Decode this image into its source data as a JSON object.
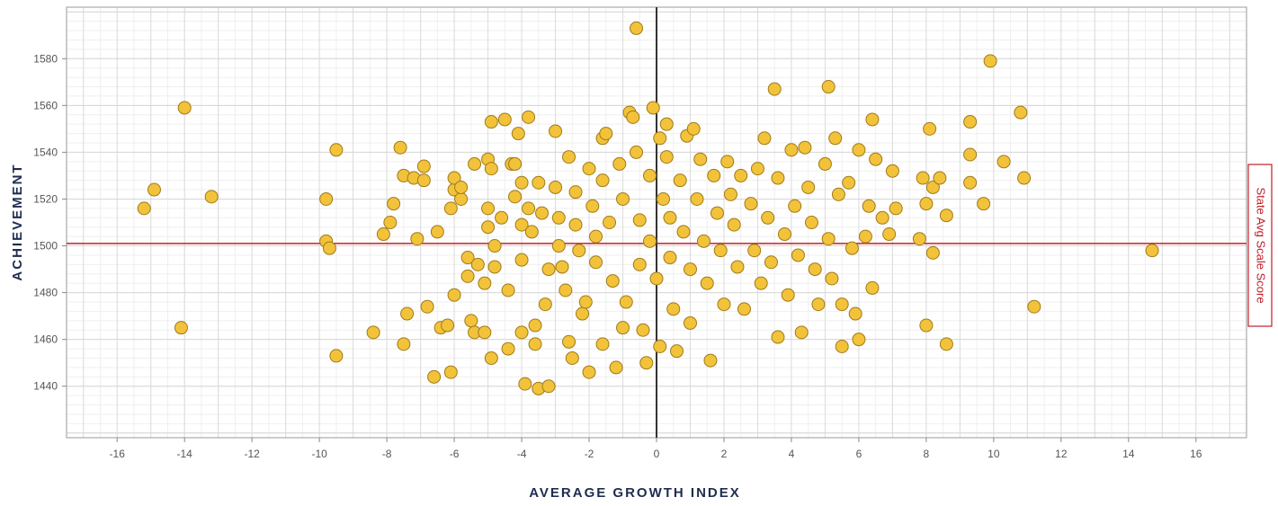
{
  "colors": {
    "point_fill": "#f2c33a",
    "point_stroke": "#a07a18",
    "reference_line": "#c0202a",
    "zero_line": "#333333",
    "axis_title": "#1f2d4f"
  },
  "chart_data": {
    "type": "scatter",
    "title": "",
    "xlabel": "AVERAGE GROWTH INDEX",
    "ylabel": "ACHIEVEMENT",
    "xlim": [
      -17.5,
      17.5
    ],
    "ylim": [
      1418,
      1602
    ],
    "xticks": [
      -16,
      -14,
      -12,
      -10,
      -8,
      -6,
      -4,
      -2,
      0,
      2,
      4,
      6,
      8,
      10,
      12,
      14,
      16
    ],
    "yticks": [
      1440,
      1460,
      1480,
      1500,
      1520,
      1540,
      1560,
      1580
    ],
    "grid": true,
    "reference_line": {
      "y": 1501,
      "label": "State Avg Scale Score"
    },
    "zero_line_x": 0,
    "points": [
      [
        -15.2,
        1516
      ],
      [
        -14.9,
        1524
      ],
      [
        -14.0,
        1559
      ],
      [
        -14.1,
        1465
      ],
      [
        -13.2,
        1521
      ],
      [
        -9.8,
        1520
      ],
      [
        -9.8,
        1502
      ],
      [
        -9.7,
        1499
      ],
      [
        -9.5,
        1541
      ],
      [
        -9.5,
        1453
      ],
      [
        -8.4,
        1463
      ],
      [
        -8.1,
        1505
      ],
      [
        -7.9,
        1510
      ],
      [
        -7.8,
        1518
      ],
      [
        -7.6,
        1542
      ],
      [
        -7.5,
        1530
      ],
      [
        -7.4,
        1471
      ],
      [
        -7.5,
        1458
      ],
      [
        -7.2,
        1529
      ],
      [
        -7.1,
        1503
      ],
      [
        -6.9,
        1534
      ],
      [
        -6.9,
        1528
      ],
      [
        -6.8,
        1474
      ],
      [
        -6.6,
        1444
      ],
      [
        -6.5,
        1506
      ],
      [
        -6.4,
        1465
      ],
      [
        -6.2,
        1466
      ],
      [
        -6.1,
        1516
      ],
      [
        -6.0,
        1524
      ],
      [
        -6.0,
        1529
      ],
      [
        -6.0,
        1479
      ],
      [
        -6.1,
        1446
      ],
      [
        -5.8,
        1520
      ],
      [
        -5.8,
        1525
      ],
      [
        -5.6,
        1495
      ],
      [
        -5.6,
        1487
      ],
      [
        -5.5,
        1468
      ],
      [
        -5.4,
        1535
      ],
      [
        -5.4,
        1463
      ],
      [
        -5.3,
        1492
      ],
      [
        -5.1,
        1484
      ],
      [
        -5.1,
        1463
      ],
      [
        -5.0,
        1537
      ],
      [
        -5.0,
        1516
      ],
      [
        -5.0,
        1508
      ],
      [
        -4.9,
        1553
      ],
      [
        -4.9,
        1533
      ],
      [
        -4.9,
        1452
      ],
      [
        -4.8,
        1500
      ],
      [
        -4.8,
        1491
      ],
      [
        -4.6,
        1512
      ],
      [
        -4.5,
        1554
      ],
      [
        -4.4,
        1481
      ],
      [
        -4.4,
        1456
      ],
      [
        -4.3,
        1535
      ],
      [
        -4.2,
        1535
      ],
      [
        -4.2,
        1521
      ],
      [
        -4.1,
        1548
      ],
      [
        -4.0,
        1527
      ],
      [
        -4.0,
        1509
      ],
      [
        -4.0,
        1494
      ],
      [
        -4.0,
        1463
      ],
      [
        -3.9,
        1441
      ],
      [
        -3.8,
        1516
      ],
      [
        -3.8,
        1555
      ],
      [
        -3.7,
        1506
      ],
      [
        -3.6,
        1466
      ],
      [
        -3.6,
        1458
      ],
      [
        -3.5,
        1439
      ],
      [
        -3.5,
        1527
      ],
      [
        -3.4,
        1514
      ],
      [
        -3.3,
        1475
      ],
      [
        -3.2,
        1490
      ],
      [
        -3.2,
        1440
      ],
      [
        -3.0,
        1549
      ],
      [
        -3.0,
        1525
      ],
      [
        -2.9,
        1512
      ],
      [
        -2.9,
        1500
      ],
      [
        -2.8,
        1491
      ],
      [
        -2.7,
        1481
      ],
      [
        -2.6,
        1538
      ],
      [
        -2.6,
        1459
      ],
      [
        -2.5,
        1452
      ],
      [
        -2.4,
        1523
      ],
      [
        -2.4,
        1509
      ],
      [
        -2.3,
        1498
      ],
      [
        -2.2,
        1471
      ],
      [
        -2.1,
        1476
      ],
      [
        -2.0,
        1446
      ],
      [
        -2.0,
        1533
      ],
      [
        -1.9,
        1517
      ],
      [
        -1.8,
        1504
      ],
      [
        -1.8,
        1493
      ],
      [
        -1.6,
        1546
      ],
      [
        -1.6,
        1528
      ],
      [
        -1.6,
        1458
      ],
      [
        -1.5,
        1548
      ],
      [
        -1.4,
        1510
      ],
      [
        -1.3,
        1485
      ],
      [
        -1.2,
        1448
      ],
      [
        -1.1,
        1535
      ],
      [
        -1.0,
        1520
      ],
      [
        -1.0,
        1465
      ],
      [
        -0.9,
        1476
      ],
      [
        -0.8,
        1557
      ],
      [
        -0.7,
        1555
      ],
      [
        -0.6,
        1593
      ],
      [
        -0.6,
        1540
      ],
      [
        -0.5,
        1511
      ],
      [
        -0.5,
        1492
      ],
      [
        -0.4,
        1464
      ],
      [
        -0.3,
        1450
      ],
      [
        -0.2,
        1530
      ],
      [
        -0.2,
        1502
      ],
      [
        -0.1,
        1559
      ],
      [
        0.0,
        1486
      ],
      [
        0.1,
        1546
      ],
      [
        0.1,
        1457
      ],
      [
        0.2,
        1520
      ],
      [
        0.3,
        1552
      ],
      [
        0.3,
        1538
      ],
      [
        0.4,
        1512
      ],
      [
        0.4,
        1495
      ],
      [
        0.5,
        1473
      ],
      [
        0.6,
        1455
      ],
      [
        0.7,
        1528
      ],
      [
        0.8,
        1506
      ],
      [
        0.9,
        1547
      ],
      [
        1.0,
        1490
      ],
      [
        1.0,
        1467
      ],
      [
        1.1,
        1550
      ],
      [
        1.2,
        1520
      ],
      [
        1.3,
        1537
      ],
      [
        1.4,
        1502
      ],
      [
        1.5,
        1484
      ],
      [
        1.6,
        1451
      ],
      [
        1.7,
        1530
      ],
      [
        1.8,
        1514
      ],
      [
        1.9,
        1498
      ],
      [
        2.0,
        1475
      ],
      [
        2.1,
        1536
      ],
      [
        2.2,
        1522
      ],
      [
        2.3,
        1509
      ],
      [
        2.4,
        1491
      ],
      [
        2.5,
        1530
      ],
      [
        2.6,
        1473
      ],
      [
        2.8,
        1518
      ],
      [
        2.9,
        1498
      ],
      [
        3.0,
        1533
      ],
      [
        3.1,
        1484
      ],
      [
        3.2,
        1546
      ],
      [
        3.3,
        1512
      ],
      [
        3.4,
        1493
      ],
      [
        3.5,
        1567
      ],
      [
        3.6,
        1529
      ],
      [
        3.6,
        1461
      ],
      [
        3.8,
        1505
      ],
      [
        3.9,
        1479
      ],
      [
        4.0,
        1541
      ],
      [
        4.1,
        1517
      ],
      [
        4.2,
        1496
      ],
      [
        4.3,
        1463
      ],
      [
        4.4,
        1542
      ],
      [
        4.5,
        1525
      ],
      [
        4.6,
        1510
      ],
      [
        4.7,
        1490
      ],
      [
        4.8,
        1475
      ],
      [
        5.0,
        1535
      ],
      [
        5.1,
        1568
      ],
      [
        5.1,
        1503
      ],
      [
        5.2,
        1486
      ],
      [
        5.3,
        1546
      ],
      [
        5.4,
        1522
      ],
      [
        5.5,
        1475
      ],
      [
        5.5,
        1457
      ],
      [
        5.7,
        1527
      ],
      [
        5.8,
        1499
      ],
      [
        5.9,
        1471
      ],
      [
        6.0,
        1541
      ],
      [
        6.0,
        1460
      ],
      [
        6.2,
        1504
      ],
      [
        6.3,
        1517
      ],
      [
        6.4,
        1554
      ],
      [
        6.5,
        1537
      ],
      [
        6.4,
        1482
      ],
      [
        6.7,
        1512
      ],
      [
        6.9,
        1505
      ],
      [
        7.0,
        1532
      ],
      [
        7.1,
        1516
      ],
      [
        7.8,
        1503
      ],
      [
        7.9,
        1529
      ],
      [
        8.0,
        1518
      ],
      [
        8.0,
        1466
      ],
      [
        8.1,
        1550
      ],
      [
        8.2,
        1525
      ],
      [
        8.2,
        1497
      ],
      [
        8.4,
        1529
      ],
      [
        8.6,
        1513
      ],
      [
        8.6,
        1458
      ],
      [
        9.3,
        1553
      ],
      [
        9.3,
        1539
      ],
      [
        9.3,
        1527
      ],
      [
        9.7,
        1518
      ],
      [
        9.9,
        1579
      ],
      [
        10.3,
        1536
      ],
      [
        10.8,
        1557
      ],
      [
        10.9,
        1529
      ],
      [
        11.2,
        1474
      ],
      [
        14.7,
        1498
      ]
    ]
  }
}
